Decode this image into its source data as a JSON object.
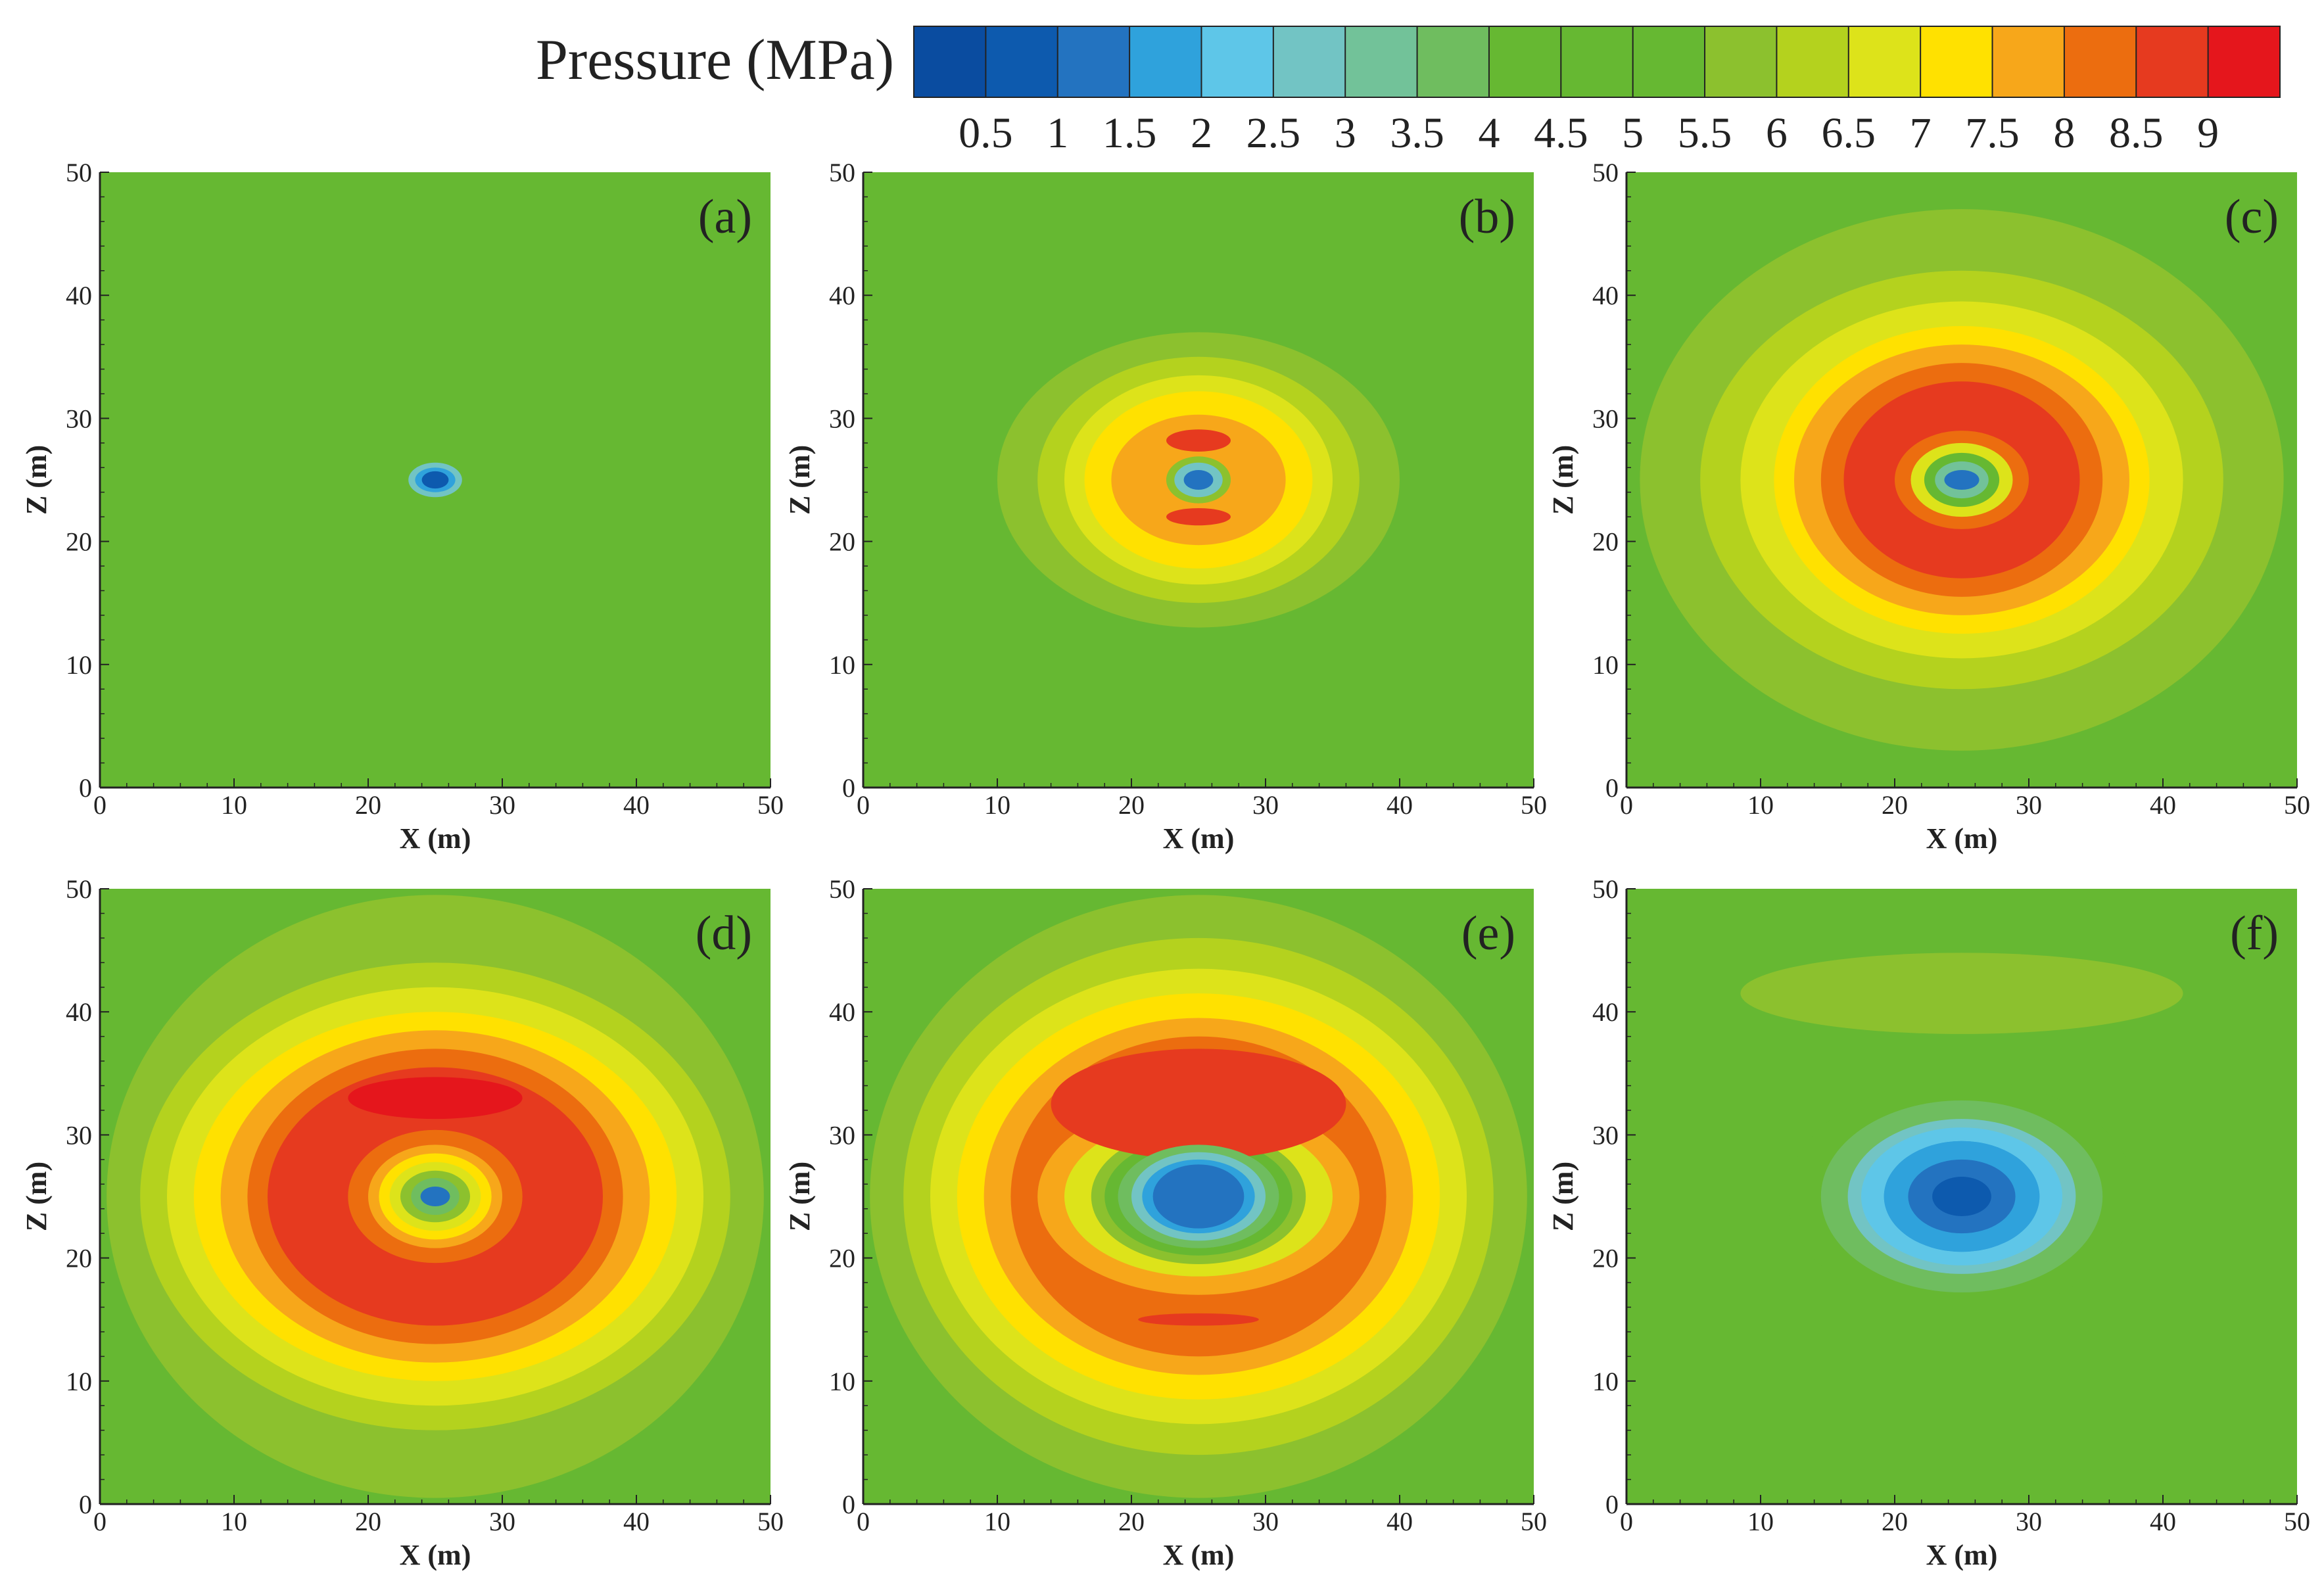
{
  "chart_data": {
    "type": "heatmap",
    "legend": {
      "title": "Pressure (MPa)",
      "tick_labels": [
        "0.5",
        "1",
        "1.5",
        "2",
        "2.5",
        "3",
        "3.5",
        "4",
        "4.5",
        "5",
        "5.5",
        "6",
        "6.5",
        "7",
        "7.5",
        "8",
        "8.5",
        "9"
      ],
      "levels": [
        0.5,
        1,
        1.5,
        2,
        2.5,
        3,
        3.5,
        4,
        4.5,
        5,
        5.5,
        6,
        6.5,
        7,
        7.5,
        8,
        8.5,
        9
      ],
      "colors": [
        "#0a4ca0",
        "#0d5aae",
        "#2373c0",
        "#2fa2dc",
        "#5ec6e8",
        "#72c4c4",
        "#72c299",
        "#6fbd5f",
        "#66b832",
        "#66b832",
        "#66b832",
        "#8cc12e",
        "#b4d21e",
        "#dde31a",
        "#ffe100",
        "#f7a71a",
        "#ec6d0f",
        "#e63a1f",
        "#e5161c"
      ]
    },
    "panels": [
      {
        "label": "(a)",
        "xlabel": "X (m)",
        "ylabel": "Z (m)",
        "xlim": [
          0,
          50
        ],
        "ylim": [
          0,
          50
        ],
        "x_ticks": [
          "0",
          "10",
          "20",
          "30",
          "40",
          "50"
        ],
        "y_ticks": [
          "0",
          "10",
          "20",
          "30",
          "40",
          "50"
        ],
        "background_pressure": 5,
        "source": {
          "x": 25,
          "z": 25
        },
        "rings": [
          {
            "pressure": 2.5,
            "rx": 2.0,
            "rz": 1.4
          },
          {
            "pressure": 1.5,
            "rx": 1.5,
            "rz": 1.0
          },
          {
            "pressure": 0.5,
            "rx": 1.0,
            "rz": 0.7
          }
        ],
        "arcs": []
      },
      {
        "label": "(b)",
        "xlabel": "X (m)",
        "ylabel": "Z (m)",
        "xlim": [
          0,
          50
        ],
        "ylim": [
          0,
          50
        ],
        "x_ticks": [
          "0",
          "10",
          "20",
          "30",
          "40",
          "50"
        ],
        "y_ticks": [
          "0",
          "10",
          "20",
          "30",
          "40",
          "50"
        ],
        "background_pressure": 5,
        "source": {
          "x": 25,
          "z": 25
        },
        "rings": [
          {
            "pressure": 5.5,
            "rx": 15,
            "rz": 12
          },
          {
            "pressure": 6,
            "rx": 12,
            "rz": 10
          },
          {
            "pressure": 6.5,
            "rx": 10,
            "rz": 8.5
          },
          {
            "pressure": 7,
            "rx": 8.5,
            "rz": 7.2
          },
          {
            "pressure": 7.5,
            "rx": 6.5,
            "rz": 5.3
          },
          {
            "pressure": 5.5,
            "rx": 2.4,
            "rz": 1.9
          },
          {
            "pressure": 2.5,
            "rx": 1.8,
            "rz": 1.4
          },
          {
            "pressure": 1,
            "rx": 1.1,
            "rz": 0.8
          }
        ],
        "arcs": [
          {
            "pressure": 8.5,
            "x": 25,
            "z": 28.2,
            "rx": 2.4,
            "rz": 0.9
          },
          {
            "pressure": 8.5,
            "x": 25,
            "z": 22.0,
            "rx": 2.4,
            "rz": 0.7
          }
        ]
      },
      {
        "label": "(c)",
        "xlabel": "X (m)",
        "ylabel": "Z (m)",
        "xlim": [
          0,
          50
        ],
        "ylim": [
          0,
          50
        ],
        "x_ticks": [
          "0",
          "10",
          "20",
          "30",
          "40",
          "50"
        ],
        "y_ticks": [
          "0",
          "10",
          "20",
          "30",
          "40",
          "50"
        ],
        "background_pressure": 5,
        "source": {
          "x": 25,
          "z": 25
        },
        "rings": [
          {
            "pressure": 5.5,
            "rx": 24,
            "rz": 22
          },
          {
            "pressure": 6,
            "rx": 19.5,
            "rz": 17
          },
          {
            "pressure": 6.5,
            "rx": 16.5,
            "rz": 14.5
          },
          {
            "pressure": 7,
            "rx": 14,
            "rz": 12.5
          },
          {
            "pressure": 7.5,
            "rx": 12.5,
            "rz": 11
          },
          {
            "pressure": 8,
            "rx": 10.5,
            "rz": 9.5
          },
          {
            "pressure": 8.5,
            "rx": 8.8,
            "rz": 8.0
          },
          {
            "pressure": 8,
            "rx": 5.0,
            "rz": 4.0
          },
          {
            "pressure": 6.5,
            "rx": 3.8,
            "rz": 3.0
          },
          {
            "pressure": 5,
            "rx": 2.8,
            "rz": 2.2
          },
          {
            "pressure": 3,
            "rx": 2.0,
            "rz": 1.5
          },
          {
            "pressure": 1,
            "rx": 1.3,
            "rz": 0.8
          }
        ],
        "arcs": []
      },
      {
        "label": "(d)",
        "xlabel": "X (m)",
        "ylabel": "Z (m)",
        "xlim": [
          0,
          50
        ],
        "ylim": [
          0,
          50
        ],
        "x_ticks": [
          "0",
          "10",
          "20",
          "30",
          "40",
          "50"
        ],
        "y_ticks": [
          "0",
          "10",
          "20",
          "30",
          "40",
          "50"
        ],
        "background_pressure": 5,
        "source": {
          "x": 25,
          "z": 25
        },
        "rings": [
          {
            "pressure": 5.5,
            "rx": 24.5,
            "rz": 24.5
          },
          {
            "pressure": 6,
            "rx": 22,
            "rz": 19
          },
          {
            "pressure": 6.5,
            "rx": 20,
            "rz": 17
          },
          {
            "pressure": 7,
            "rx": 18,
            "rz": 15
          },
          {
            "pressure": 7.5,
            "rx": 16,
            "rz": 13.5
          },
          {
            "pressure": 8,
            "rx": 14,
            "rz": 12
          },
          {
            "pressure": 8.5,
            "rx": 12.5,
            "rz": 10.5
          },
          {
            "pressure": 8,
            "rx": 6.5,
            "rz": 5.4
          },
          {
            "pressure": 7.5,
            "rx": 5.0,
            "rz": 4.2
          },
          {
            "pressure": 7,
            "rx": 4.2,
            "rz": 3.5
          },
          {
            "pressure": 6.5,
            "rx": 3.4,
            "rz": 2.8
          },
          {
            "pressure": 5.5,
            "rx": 2.6,
            "rz": 2.1
          },
          {
            "pressure": 3.5,
            "rx": 1.8,
            "rz": 1.5
          },
          {
            "pressure": 1,
            "rx": 1.1,
            "rz": 0.8
          }
        ],
        "arcs": [
          {
            "pressure": 9,
            "x": 25,
            "z": 33.0,
            "rx": 6.5,
            "rz": 1.7
          }
        ]
      },
      {
        "label": "(e)",
        "xlabel": "X (m)",
        "ylabel": "Z (m)",
        "xlim": [
          0,
          50
        ],
        "ylim": [
          0,
          50
        ],
        "x_ticks": [
          "0",
          "10",
          "20",
          "30",
          "40",
          "50"
        ],
        "y_ticks": [
          "0",
          "10",
          "20",
          "30",
          "40",
          "50"
        ],
        "background_pressure": 5,
        "source": {
          "x": 25,
          "z": 25
        },
        "rings": [
          {
            "pressure": 5.5,
            "rx": 24.5,
            "rz": 24.5
          },
          {
            "pressure": 6,
            "rx": 22,
            "rz": 21
          },
          {
            "pressure": 6.5,
            "rx": 20,
            "rz": 18.5
          },
          {
            "pressure": 7,
            "rx": 18,
            "rz": 16.5
          },
          {
            "pressure": 7.5,
            "rx": 16,
            "rz": 14.5
          },
          {
            "pressure": 8,
            "rx": 14,
            "rz": 13
          },
          {
            "pressure": 7.5,
            "rx": 12,
            "rz": 8
          },
          {
            "pressure": 6.5,
            "rx": 10,
            "rz": 6.5
          },
          {
            "pressure": 5.5,
            "rx": 8,
            "rz": 5.5
          },
          {
            "pressure": 4.5,
            "rx": 7,
            "rz": 4.8
          },
          {
            "pressure": 3.5,
            "rx": 6,
            "rz": 4.2
          },
          {
            "pressure": 2.5,
            "rx": 5,
            "rz": 3.6
          },
          {
            "pressure": 1.5,
            "rx": 4.2,
            "rz": 3.0
          },
          {
            "pressure": 1,
            "rx": 3.4,
            "rz": 2.6
          }
        ],
        "arcs": [
          {
            "pressure": 8.5,
            "x": 25,
            "z": 32.5,
            "rx": 11,
            "rz": 4.5
          },
          {
            "pressure": 8.5,
            "x": 25,
            "z": 15.0,
            "rx": 4.5,
            "rz": 0.5
          }
        ]
      },
      {
        "label": "(f)",
        "xlabel": "X (m)",
        "ylabel": "Z (m)",
        "xlim": [
          0,
          50
        ],
        "ylim": [
          0,
          50
        ],
        "x_ticks": [
          "0",
          "10",
          "20",
          "30",
          "40",
          "50"
        ],
        "y_ticks": [
          "0",
          "10",
          "20",
          "30",
          "40",
          "50"
        ],
        "background_pressure": 5,
        "source": {
          "x": 25,
          "z": 25
        },
        "rings": [
          {
            "pressure": 4.5,
            "rx": 13,
            "rz": 9.5
          },
          {
            "pressure": 3.5,
            "rx": 10.5,
            "rz": 7.8
          },
          {
            "pressure": 2.5,
            "rx": 8.5,
            "rz": 6.3
          },
          {
            "pressure": 2,
            "rx": 7.5,
            "rz": 5.6
          },
          {
            "pressure": 1.5,
            "rx": 5.8,
            "rz": 4.5
          },
          {
            "pressure": 1,
            "rx": 4.0,
            "rz": 3.0
          },
          {
            "pressure": 0.5,
            "rx": 2.2,
            "rz": 1.6
          }
        ],
        "arcs": [
          {
            "pressure": 5.5,
            "x": 25,
            "z": 41.5,
            "rx": 16.5,
            "rz": 3.3
          }
        ]
      }
    ]
  }
}
